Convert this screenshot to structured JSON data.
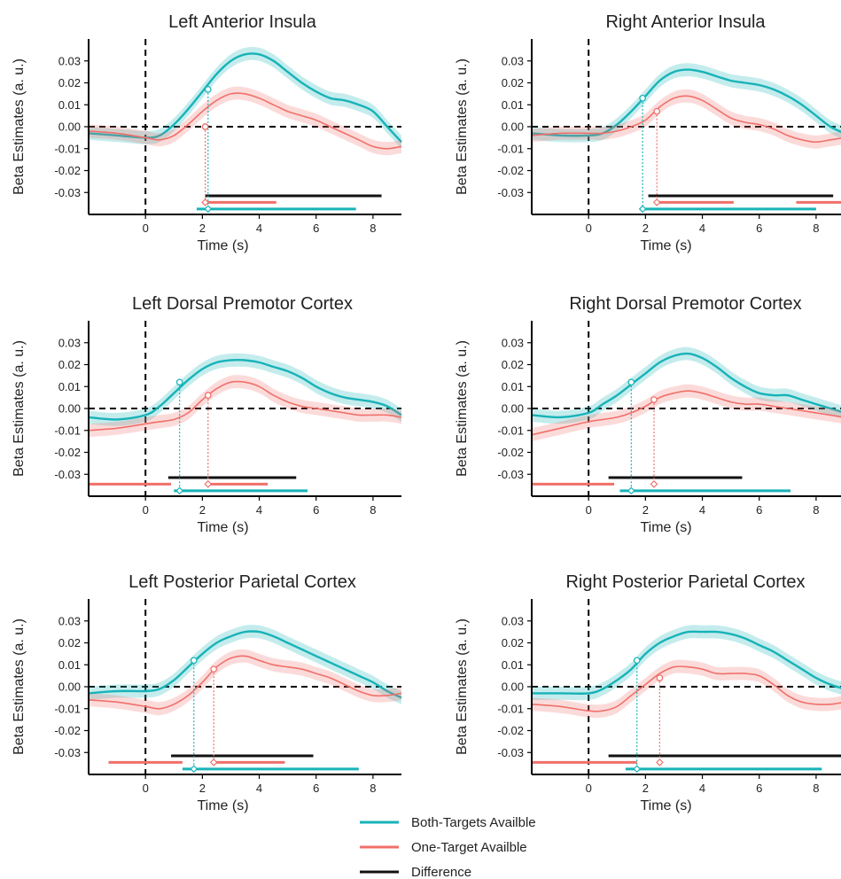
{
  "legend": [
    {
      "label": "Both-Targets Availble",
      "color": "#17b3b8"
    },
    {
      "label": "One-Target Availble",
      "color": "#f0706a"
    },
    {
      "label": "Difference",
      "color": "#111111"
    }
  ],
  "colors": {
    "both": "#17b3b8",
    "one": "#f0706a",
    "diff": "#111111"
  },
  "chart_data": [
    {
      "type": "line",
      "title": "Left Anterior Insula",
      "xlabel": "Time (s)",
      "ylabel": "Beta Estimates (a. u.)",
      "xlim": [
        -2,
        9
      ],
      "ylim": [
        -0.04,
        0.04
      ],
      "xticks": [
        0,
        2,
        4,
        6,
        8
      ],
      "yticks": [
        0.03,
        0.02,
        0.01,
        0.0,
        -0.01,
        -0.02,
        -0.03
      ],
      "ytick_labels": [
        "0.03",
        "0.02",
        "0.01",
        "0.00",
        "-0.01",
        "-0.02",
        "-0.03"
      ],
      "series": [
        {
          "name": "Both-Targets Availble",
          "color": "#17b3b8",
          "band": 0.003,
          "x": [
            -2,
            -1,
            0,
            0.5,
            1,
            1.5,
            2,
            2.5,
            3,
            3.5,
            4,
            4.5,
            5,
            5.5,
            6,
            6.5,
            7,
            7.5,
            8,
            8.5,
            9
          ],
          "y": [
            -0.003,
            -0.004,
            -0.005,
            -0.004,
            0.001,
            0.008,
            0.016,
            0.024,
            0.03,
            0.033,
            0.033,
            0.03,
            0.025,
            0.02,
            0.016,
            0.013,
            0.012,
            0.01,
            0.007,
            0.0,
            -0.007
          ]
        },
        {
          "name": "One-Target Availble",
          "color": "#f0706a",
          "band": 0.003,
          "x": [
            -2,
            -1,
            0,
            0.5,
            1,
            1.5,
            2,
            2.5,
            3,
            3.5,
            4,
            4.5,
            5,
            5.5,
            6,
            6.5,
            7,
            7.5,
            8,
            8.5,
            9
          ],
          "y": [
            -0.002,
            -0.003,
            -0.005,
            -0.006,
            -0.004,
            0.001,
            0.007,
            0.012,
            0.015,
            0.015,
            0.013,
            0.01,
            0.007,
            0.005,
            0.003,
            0.0,
            -0.003,
            -0.006,
            -0.009,
            -0.01,
            -0.009
          ]
        }
      ],
      "onsets": [
        {
          "series": 0,
          "x": 2.2,
          "y": 0.017
        },
        {
          "series": 1,
          "x": 2.1,
          "y": 0.0
        }
      ],
      "sig_bars": [
        {
          "series": "diff",
          "y": -0.0315,
          "ranges": [
            [
              2.1,
              8.3
            ]
          ]
        },
        {
          "series": "one",
          "y": -0.0345,
          "ranges": [
            [
              2.0,
              4.6
            ]
          ]
        },
        {
          "series": "both",
          "y": -0.0375,
          "ranges": [
            [
              1.8,
              7.4
            ]
          ]
        }
      ]
    },
    {
      "type": "line",
      "title": "Right Anterior Insula",
      "xlabel": "Time (s)",
      "ylabel": "Beta Estimates (a. u.)",
      "xlim": [
        -2,
        9
      ],
      "ylim": [
        -0.04,
        0.04
      ],
      "xticks": [
        0,
        2,
        4,
        6,
        8
      ],
      "yticks": [
        0.03,
        0.02,
        0.01,
        0.0,
        -0.01,
        -0.02,
        -0.03
      ],
      "ytick_labels": [
        "0.03",
        "0.02",
        "0.01",
        "0.00",
        "-0.01",
        "-0.02",
        "-0.03"
      ],
      "series": [
        {
          "name": "Both-Targets Availble",
          "color": "#17b3b8",
          "band": 0.003,
          "x": [
            -2,
            -1,
            0,
            0.5,
            1,
            1.5,
            2,
            2.5,
            3,
            3.5,
            4,
            4.5,
            5,
            5.5,
            6,
            6.5,
            7,
            7.5,
            8,
            8.5,
            9
          ],
          "y": [
            -0.003,
            -0.004,
            -0.004,
            -0.003,
            0.001,
            0.007,
            0.014,
            0.021,
            0.025,
            0.026,
            0.025,
            0.023,
            0.021,
            0.02,
            0.019,
            0.017,
            0.014,
            0.01,
            0.005,
            0.0,
            -0.003
          ]
        },
        {
          "name": "One-Target Availble",
          "color": "#f0706a",
          "band": 0.003,
          "x": [
            -2,
            -1,
            0,
            0.5,
            1,
            1.5,
            2,
            2.5,
            3,
            3.5,
            4,
            4.5,
            5,
            5.5,
            6,
            6.5,
            7,
            7.5,
            8,
            8.5,
            9
          ],
          "y": [
            -0.004,
            -0.003,
            -0.003,
            -0.003,
            -0.002,
            0.0,
            0.003,
            0.009,
            0.013,
            0.014,
            0.012,
            0.008,
            0.004,
            0.002,
            0.001,
            -0.001,
            -0.004,
            -0.006,
            -0.007,
            -0.006,
            -0.005
          ]
        }
      ],
      "onsets": [
        {
          "series": 0,
          "x": 1.9,
          "y": 0.013
        },
        {
          "series": 1,
          "x": 2.4,
          "y": 0.007
        }
      ],
      "sig_bars": [
        {
          "series": "diff",
          "y": -0.0315,
          "ranges": [
            [
              2.1,
              8.6
            ]
          ]
        },
        {
          "series": "one",
          "y": -0.0345,
          "ranges": [
            [
              2.4,
              5.1
            ],
            [
              7.3,
              9.0
            ]
          ]
        },
        {
          "series": "both",
          "y": -0.0375,
          "ranges": [
            [
              1.8,
              8.0
            ]
          ]
        }
      ]
    },
    {
      "type": "line",
      "title": "Left Dorsal Premotor Cortex",
      "xlabel": "Time (s)",
      "ylabel": "Beta Estimates (a. u.)",
      "xlim": [
        -2,
        9
      ],
      "ylim": [
        -0.04,
        0.04
      ],
      "xticks": [
        0,
        2,
        4,
        6,
        8
      ],
      "yticks": [
        0.03,
        0.02,
        0.01,
        0.0,
        -0.01,
        -0.02,
        -0.03
      ],
      "ytick_labels": [
        "0.03",
        "0.02",
        "0.01",
        "0.00",
        "-0.01",
        "-0.02",
        "-0.03"
      ],
      "series": [
        {
          "name": "Both-Targets Availble",
          "color": "#17b3b8",
          "band": 0.003,
          "x": [
            -2,
            -1,
            0,
            0.5,
            1,
            1.5,
            2,
            2.5,
            3,
            3.5,
            4,
            4.5,
            5,
            5.5,
            6,
            6.5,
            7,
            7.5,
            8,
            8.5,
            9
          ],
          "y": [
            -0.004,
            -0.005,
            -0.003,
            0.001,
            0.007,
            0.013,
            0.018,
            0.021,
            0.022,
            0.022,
            0.021,
            0.019,
            0.017,
            0.014,
            0.01,
            0.007,
            0.005,
            0.004,
            0.003,
            0.001,
            -0.003
          ]
        },
        {
          "name": "One-Target Availble",
          "color": "#f0706a",
          "band": 0.003,
          "x": [
            -2,
            -1,
            0,
            0.5,
            1,
            1.5,
            2,
            2.5,
            3,
            3.5,
            4,
            4.5,
            5,
            5.5,
            6,
            6.5,
            7,
            7.5,
            8,
            8.5,
            9
          ],
          "y": [
            -0.01,
            -0.009,
            -0.007,
            -0.006,
            -0.005,
            -0.002,
            0.004,
            0.009,
            0.012,
            0.012,
            0.01,
            0.006,
            0.003,
            0.001,
            0.0,
            -0.001,
            -0.002,
            -0.003,
            -0.003,
            -0.003,
            -0.004
          ]
        }
      ],
      "onsets": [
        {
          "series": 0,
          "x": 1.2,
          "y": 0.012
        },
        {
          "series": 1,
          "x": 2.2,
          "y": 0.006
        }
      ],
      "sig_bars": [
        {
          "series": "diff",
          "y": -0.0315,
          "ranges": [
            [
              0.8,
              5.3
            ]
          ]
        },
        {
          "series": "one",
          "y": -0.0345,
          "ranges": [
            [
              -2.0,
              0.9
            ],
            [
              2.1,
              4.3
            ]
          ]
        },
        {
          "series": "both",
          "y": -0.0375,
          "ranges": [
            [
              1.0,
              5.7
            ]
          ]
        }
      ]
    },
    {
      "type": "line",
      "title": "Right Dorsal Premotor Cortex",
      "xlabel": "Time (s)",
      "ylabel": "Beta Estimates (a. u.)",
      "xlim": [
        -2,
        9
      ],
      "ylim": [
        -0.04,
        0.04
      ],
      "xticks": [
        0,
        2,
        4,
        6,
        8
      ],
      "yticks": [
        0.03,
        0.02,
        0.01,
        0.0,
        -0.01,
        -0.02,
        -0.03
      ],
      "ytick_labels": [
        "0.03",
        "0.02",
        "0.01",
        "0.00",
        "-0.01",
        "-0.02",
        "-0.03"
      ],
      "series": [
        {
          "name": "Both-Targets Availble",
          "color": "#17b3b8",
          "band": 0.003,
          "x": [
            -2,
            -1,
            0,
            0.5,
            1,
            1.5,
            2,
            2.5,
            3,
            3.5,
            4,
            4.5,
            5,
            5.5,
            6,
            6.5,
            7,
            7.5,
            8,
            8.5,
            9
          ],
          "y": [
            -0.003,
            -0.004,
            -0.002,
            0.002,
            0.006,
            0.011,
            0.016,
            0.021,
            0.024,
            0.025,
            0.023,
            0.019,
            0.014,
            0.01,
            0.007,
            0.006,
            0.006,
            0.004,
            0.002,
            0.0,
            -0.002
          ]
        },
        {
          "name": "One-Target Availble",
          "color": "#f0706a",
          "band": 0.003,
          "x": [
            -2,
            -1,
            0,
            0.5,
            1,
            1.5,
            2,
            2.5,
            3,
            3.5,
            4,
            4.5,
            5,
            5.5,
            6,
            6.5,
            7,
            7.5,
            8,
            8.5,
            9
          ],
          "y": [
            -0.012,
            -0.009,
            -0.006,
            -0.005,
            -0.004,
            -0.002,
            0.001,
            0.005,
            0.007,
            0.008,
            0.007,
            0.005,
            0.003,
            0.002,
            0.002,
            0.001,
            0.0,
            -0.001,
            -0.002,
            -0.003,
            -0.004
          ]
        }
      ],
      "onsets": [
        {
          "series": 0,
          "x": 1.5,
          "y": 0.012
        },
        {
          "series": 1,
          "x": 2.3,
          "y": 0.004
        }
      ],
      "sig_bars": [
        {
          "series": "diff",
          "y": -0.0315,
          "ranges": [
            [
              0.7,
              5.4
            ]
          ]
        },
        {
          "series": "one",
          "y": -0.0345,
          "ranges": [
            [
              -2.0,
              0.9
            ]
          ]
        },
        {
          "series": "both",
          "y": -0.0375,
          "ranges": [
            [
              1.1,
              7.1
            ]
          ]
        }
      ]
    },
    {
      "type": "line",
      "title": "Left Posterior Parietal Cortex",
      "xlabel": "Time (s)",
      "ylabel": "Beta Estimates (a. u.)",
      "xlim": [
        -2,
        9
      ],
      "ylim": [
        -0.04,
        0.04
      ],
      "xticks": [
        0,
        2,
        4,
        6,
        8
      ],
      "yticks": [
        0.03,
        0.02,
        0.01,
        0.0,
        -0.01,
        -0.02,
        -0.03
      ],
      "ytick_labels": [
        "0.03",
        "0.02",
        "0.01",
        "0.00",
        "-0.01",
        "-0.02",
        "-0.03"
      ],
      "series": [
        {
          "name": "Both-Targets Availble",
          "color": "#17b3b8",
          "band": 0.003,
          "x": [
            -2,
            -1,
            0,
            0.5,
            1,
            1.5,
            2,
            2.5,
            3,
            3.5,
            4,
            4.5,
            5,
            5.5,
            6,
            6.5,
            7,
            7.5,
            8,
            8.5,
            9
          ],
          "y": [
            -0.003,
            -0.002,
            -0.002,
            -0.001,
            0.003,
            0.009,
            0.015,
            0.02,
            0.023,
            0.025,
            0.025,
            0.023,
            0.02,
            0.017,
            0.014,
            0.011,
            0.008,
            0.005,
            0.002,
            -0.002,
            -0.005
          ]
        },
        {
          "name": "One-Target Availble",
          "color": "#f0706a",
          "band": 0.003,
          "x": [
            -2,
            -1,
            0,
            0.5,
            1,
            1.5,
            2,
            2.5,
            3,
            3.5,
            4,
            4.5,
            5,
            5.5,
            6,
            6.5,
            7,
            7.5,
            8,
            8.5,
            9
          ],
          "y": [
            -0.006,
            -0.007,
            -0.009,
            -0.01,
            -0.008,
            -0.004,
            0.002,
            0.009,
            0.013,
            0.014,
            0.012,
            0.01,
            0.009,
            0.008,
            0.006,
            0.004,
            0.001,
            -0.002,
            -0.004,
            -0.004,
            -0.003
          ]
        }
      ],
      "onsets": [
        {
          "series": 0,
          "x": 1.7,
          "y": 0.012
        },
        {
          "series": 1,
          "x": 2.4,
          "y": 0.008
        }
      ],
      "sig_bars": [
        {
          "series": "diff",
          "y": -0.0315,
          "ranges": [
            [
              0.9,
              5.9
            ]
          ]
        },
        {
          "series": "one",
          "y": -0.0345,
          "ranges": [
            [
              -1.3,
              1.3
            ],
            [
              2.4,
              4.9
            ]
          ]
        },
        {
          "series": "both",
          "y": -0.0375,
          "ranges": [
            [
              1.3,
              7.5
            ]
          ]
        }
      ]
    },
    {
      "type": "line",
      "title": "Right Posterior Parietal Cortex",
      "xlabel": "Time (s)",
      "ylabel": "Beta Estimates (a. u.)",
      "xlim": [
        -2,
        9
      ],
      "ylim": [
        -0.04,
        0.04
      ],
      "xticks": [
        0,
        2,
        4,
        6,
        8
      ],
      "yticks": [
        0.03,
        0.02,
        0.01,
        0.0,
        -0.01,
        -0.02,
        -0.03
      ],
      "ytick_labels": [
        "0.03",
        "0.02",
        "0.01",
        "0.00",
        "-0.01",
        "-0.02",
        "-0.03"
      ],
      "series": [
        {
          "name": "Both-Targets Availble",
          "color": "#17b3b8",
          "band": 0.003,
          "x": [
            -2,
            -1,
            0,
            0.5,
            1,
            1.5,
            2,
            2.5,
            3,
            3.5,
            4,
            4.5,
            5,
            5.5,
            6,
            6.5,
            7,
            7.5,
            8,
            8.5,
            9
          ],
          "y": [
            -0.003,
            -0.003,
            -0.003,
            -0.001,
            0.003,
            0.008,
            0.015,
            0.02,
            0.023,
            0.025,
            0.025,
            0.025,
            0.024,
            0.022,
            0.019,
            0.016,
            0.012,
            0.008,
            0.004,
            0.001,
            -0.001
          ]
        },
        {
          "name": "One-Target Availble",
          "color": "#f0706a",
          "band": 0.003,
          "x": [
            -2,
            -1,
            0,
            0.5,
            1,
            1.5,
            2,
            2.5,
            3,
            3.5,
            4,
            4.5,
            5,
            5.5,
            6,
            6.5,
            7,
            7.5,
            8,
            8.5,
            9
          ],
          "y": [
            -0.008,
            -0.009,
            -0.011,
            -0.011,
            -0.009,
            -0.004,
            0.001,
            0.006,
            0.009,
            0.009,
            0.008,
            0.006,
            0.006,
            0.006,
            0.005,
            0.001,
            -0.004,
            -0.007,
            -0.008,
            -0.008,
            -0.007
          ]
        }
      ],
      "onsets": [
        {
          "series": 0,
          "x": 1.7,
          "y": 0.012
        },
        {
          "series": 1,
          "x": 2.5,
          "y": 0.004
        }
      ],
      "sig_bars": [
        {
          "series": "diff",
          "y": -0.0315,
          "ranges": [
            [
              0.7,
              9.0
            ]
          ]
        },
        {
          "series": "one",
          "y": -0.0345,
          "ranges": [
            [
              -2.0,
              1.7
            ]
          ]
        },
        {
          "series": "both",
          "y": -0.0375,
          "ranges": [
            [
              1.3,
              8.2
            ]
          ]
        }
      ]
    }
  ]
}
